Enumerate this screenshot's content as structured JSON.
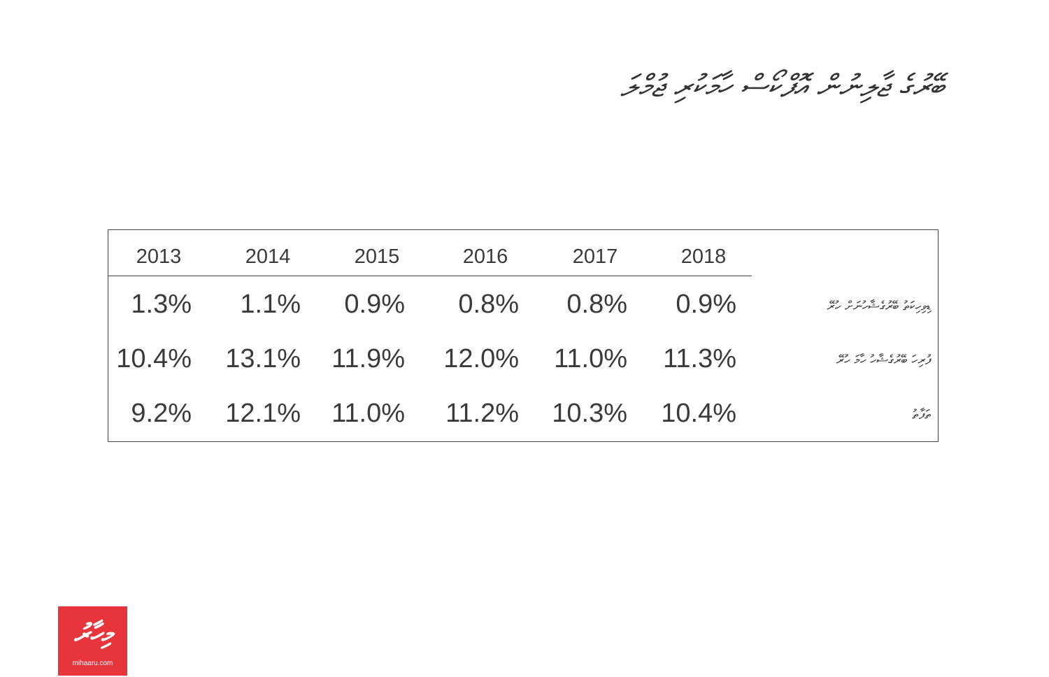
{
  "title": "ބޭރުގެ ޖާލިނުން އޮފްކޯސް ހާމަކުރި ޖުމްލަ",
  "chart_data": {
    "type": "table",
    "columns": [
      "2013",
      "2014",
      "2015",
      "2016",
      "2017",
      "2018"
    ],
    "rows": [
      {
        "label": "ޑިވިހިކަތު ބޭރުގެޝާހުނަށް ހުރޭ",
        "values": [
          "1.3%",
          "1.1%",
          "0.9%",
          "0.8%",
          "0.8%",
          "0.9%"
        ]
      },
      {
        "label": "ފުރިހަ ބޭރުގެޝާހު ހާމަ ހުރޭ",
        "values": [
          "10.4%",
          "13.1%",
          "11.9%",
          "12.0%",
          "11.0%",
          "11.3%"
        ]
      },
      {
        "label": "ތަފާތު",
        "values": [
          "9.2%",
          "12.1%",
          "11.0%",
          "11.2%",
          "10.3%",
          "10.4%"
        ]
      }
    ]
  },
  "logo": {
    "mark": "މިހާރު",
    "text": "mihaaru.com",
    "color": "#e8343b"
  }
}
